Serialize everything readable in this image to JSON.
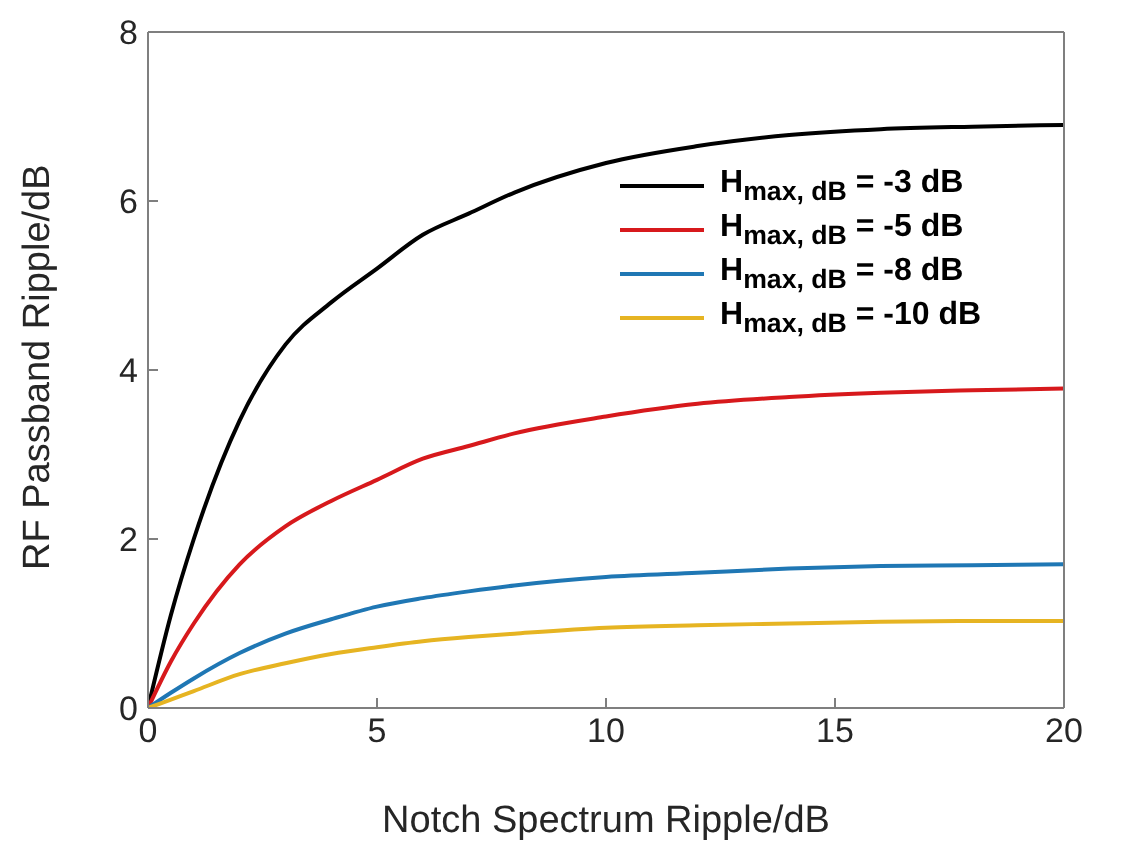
{
  "chart_data": {
    "type": "line",
    "xlabel": "Notch Spectrum Ripple/dB",
    "ylabel": "RF Passband Ripple/dB",
    "x": [
      0,
      0.5,
      1,
      2,
      3,
      4,
      5,
      6,
      7,
      8,
      10,
      12,
      14,
      16,
      18,
      20
    ],
    "series": [
      {
        "name": "H$_{max, dB}$ = -3 dB",
        "color": "#000000",
        "values": [
          0,
          1.1,
          2.0,
          3.4,
          4.3,
          4.8,
          5.2,
          5.6,
          5.85,
          6.1,
          6.45,
          6.65,
          6.78,
          6.85,
          6.88,
          6.9
        ]
      },
      {
        "name": "H$_{max, dB}$ = -5 dB",
        "color": "#d7191c",
        "values": [
          0,
          0.55,
          1.0,
          1.7,
          2.15,
          2.45,
          2.7,
          2.95,
          3.1,
          3.25,
          3.45,
          3.6,
          3.68,
          3.73,
          3.76,
          3.78
        ]
      },
      {
        "name": "H$_{max, dB}$ = -8 dB",
        "color": "#1f77b4",
        "values": [
          0,
          0.18,
          0.35,
          0.65,
          0.88,
          1.05,
          1.2,
          1.3,
          1.38,
          1.45,
          1.55,
          1.6,
          1.65,
          1.68,
          1.69,
          1.7
        ]
      },
      {
        "name": "H$_{max, dB}$ = -10 dB",
        "color": "#e6b422",
        "values": [
          0,
          0.1,
          0.2,
          0.4,
          0.53,
          0.64,
          0.72,
          0.79,
          0.84,
          0.88,
          0.95,
          0.98,
          1.0,
          1.02,
          1.03,
          1.03
        ]
      }
    ],
    "xlim": [
      0,
      20
    ],
    "xticks": [
      0,
      5,
      10,
      15,
      20
    ],
    "ylim": [
      0,
      8
    ],
    "yticks": [
      0,
      2,
      4,
      6,
      8
    ],
    "legend": "top right",
    "marker": "none",
    "line_style": "solid"
  }
}
